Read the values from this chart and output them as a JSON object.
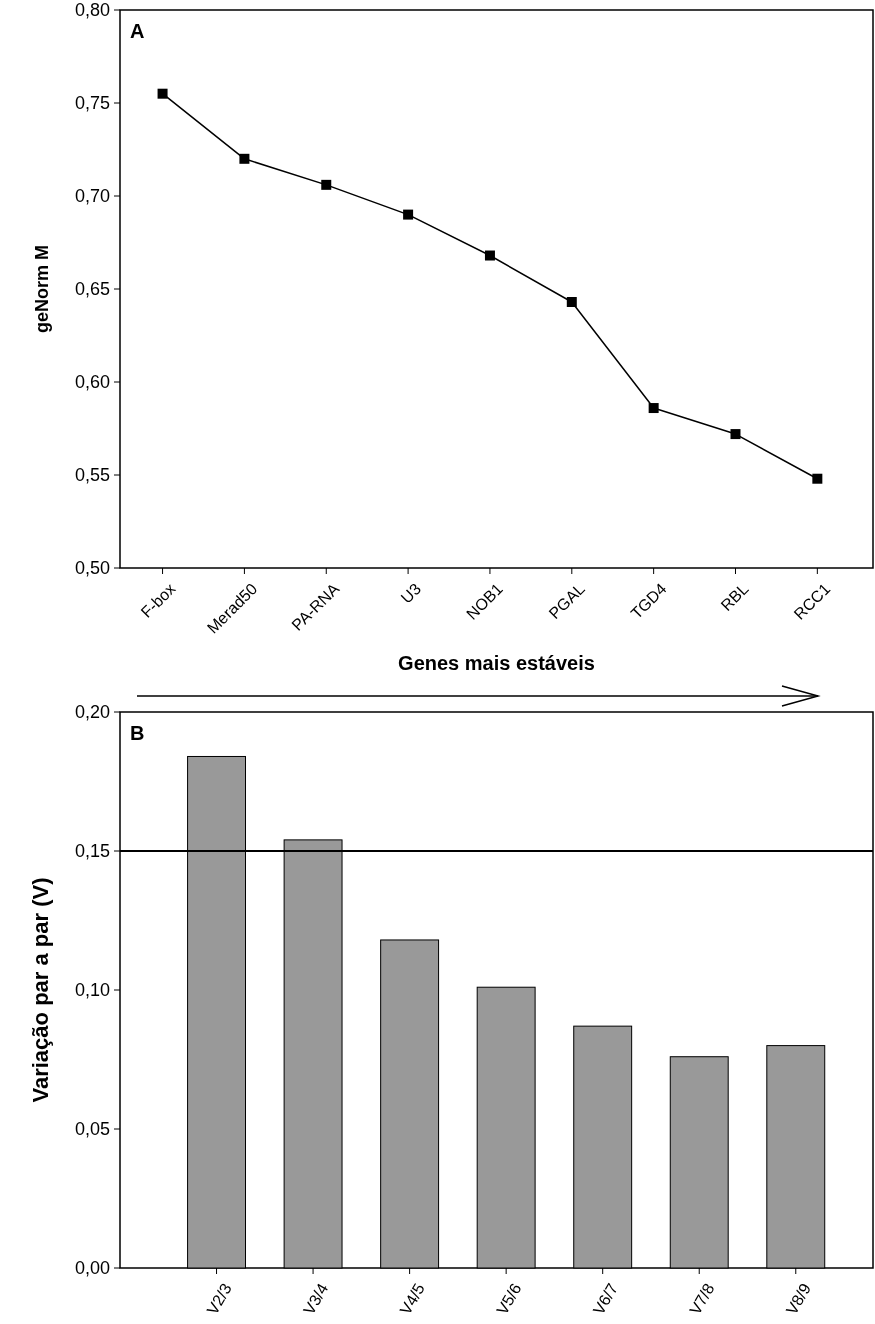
{
  "chart_data": [
    {
      "type": "line",
      "annotations": [
        "A"
      ],
      "xlabel": "Genes mais estáveis",
      "ylabel": "geNorm M",
      "categories": [
        "F-box",
        "Merad50",
        "PA-RNA",
        "U3",
        "NOB1",
        "PGAL",
        "TGD4",
        "RBL",
        "RCC1"
      ],
      "series": [
        {
          "color": "#000000",
          "values": [
            0.755,
            0.72,
            0.706,
            0.69,
            0.668,
            0.643,
            0.586,
            0.572,
            0.548
          ]
        }
      ],
      "ylim": [
        0.5,
        0.8
      ],
      "yticks": [
        {
          "value": 0.5,
          "label": "0,50"
        },
        {
          "value": 0.55,
          "label": "0,55"
        },
        {
          "value": 0.6,
          "label": "0,60"
        },
        {
          "value": 0.65,
          "label": "0,65"
        },
        {
          "value": 0.7,
          "label": "0,70"
        },
        {
          "value": 0.75,
          "label": "0,75"
        },
        {
          "value": 0.8,
          "label": "0,80"
        }
      ],
      "marker": "square",
      "line_style": "solid"
    },
    {
      "type": "bar",
      "annotations": [
        "B"
      ],
      "ylabel": "Variação par a par (V)",
      "categories": [
        "V2/3",
        "V3/4",
        "V4/5",
        "V5/6",
        "V6/7",
        "V7/8",
        "V8/9"
      ],
      "series": [
        {
          "color": "#999999",
          "values": [
            0.184,
            0.154,
            0.118,
            0.101,
            0.087,
            0.076,
            0.08
          ]
        }
      ],
      "ylim": [
        0,
        0.2
      ],
      "yticks": [
        {
          "value": 0,
          "label": "0,00"
        },
        {
          "value": 0.05,
          "label": "0,05"
        },
        {
          "value": 0.1,
          "label": "0,10"
        },
        {
          "value": 0.15,
          "label": "0,15"
        },
        {
          "value": 0.2,
          "label": "0,20"
        }
      ],
      "ref_lines": [
        {
          "axis": "y",
          "value": 0.15,
          "color": "#000000"
        }
      ]
    }
  ]
}
